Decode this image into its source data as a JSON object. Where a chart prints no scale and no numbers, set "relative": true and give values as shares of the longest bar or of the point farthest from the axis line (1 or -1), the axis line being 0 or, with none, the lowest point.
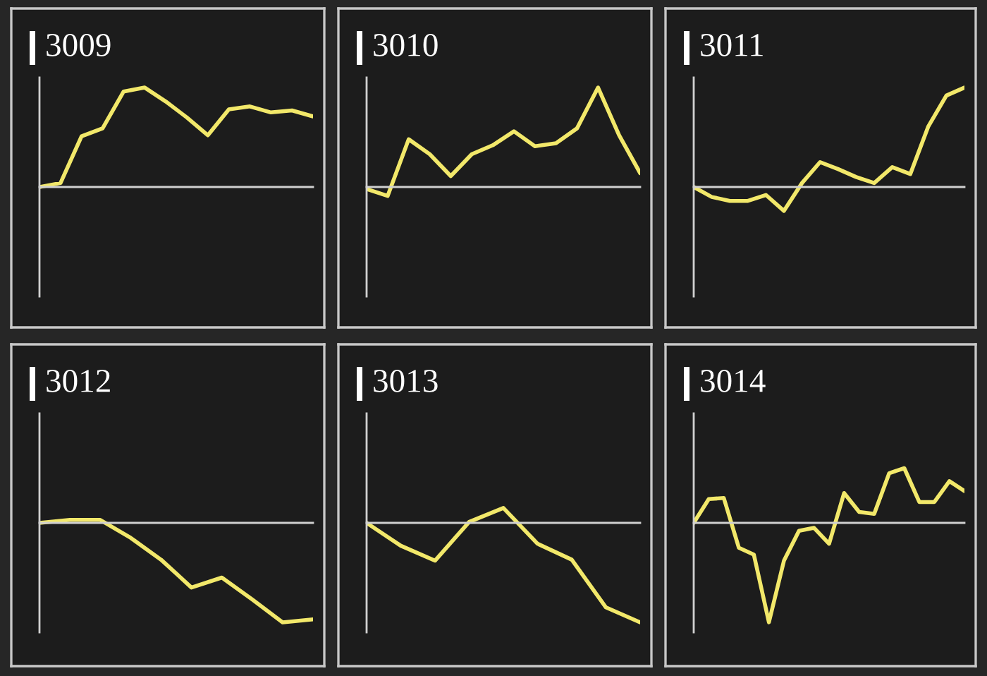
{
  "chart_data": [
    {
      "type": "line",
      "title": "3009",
      "relative": true,
      "color": "#f2e86a",
      "categories": [
        null,
        null,
        null,
        null,
        null,
        null,
        null,
        null,
        null,
        null,
        null,
        null,
        null,
        null
      ],
      "values": [
        0,
        0.04,
        0.51,
        0.59,
        0.96,
        1,
        0.86,
        0.7,
        0.52,
        0.78,
        0.81,
        0.75,
        0.77,
        0.71
      ]
    },
    {
      "type": "line",
      "title": "3010",
      "relative": true,
      "color": "#f2e86a",
      "categories": [
        null,
        null,
        null,
        null,
        null,
        null,
        null,
        null,
        null,
        null,
        null,
        null,
        null,
        null
      ],
      "values": [
        -0.02,
        -0.09,
        0.48,
        0.33,
        0.11,
        0.33,
        0.42,
        0.56,
        0.41,
        0.44,
        0.59,
        1,
        0.52,
        0.14
      ]
    },
    {
      "type": "line",
      "title": "3011",
      "relative": true,
      "color": "#f2e86a",
      "categories": [
        null,
        null,
        null,
        null,
        null,
        null,
        null,
        null,
        null,
        null,
        null,
        null,
        null,
        null,
        null,
        null
      ],
      "values": [
        0,
        -0.1,
        -0.14,
        -0.14,
        -0.08,
        -0.24,
        0.04,
        0.25,
        0.18,
        0.1,
        0.04,
        0.2,
        0.13,
        0.61,
        0.92,
        1
      ]
    },
    {
      "type": "line",
      "title": "3012",
      "relative": true,
      "color": "#f2e86a",
      "categories": [
        null,
        null,
        null,
        null,
        null,
        null,
        null,
        null,
        null,
        null
      ],
      "values": [
        0,
        0.03,
        0.03,
        -0.15,
        -0.37,
        -0.65,
        -0.55,
        -0.77,
        -1,
        -0.97
      ]
    },
    {
      "type": "line",
      "title": "3013",
      "relative": true,
      "color": "#f2e86a",
      "categories": [
        null,
        null,
        null,
        null,
        null,
        null,
        null,
        null,
        null
      ],
      "values": [
        0,
        -0.23,
        -0.38,
        0.01,
        0.15,
        -0.21,
        -0.37,
        -0.85,
        -1
      ]
    },
    {
      "type": "line",
      "title": "3014",
      "relative": true,
      "color": "#f2e86a",
      "categories": [
        null,
        null,
        null,
        null,
        null,
        null,
        null,
        null,
        null,
        null,
        null,
        null,
        null,
        null,
        null,
        null,
        null,
        null,
        null
      ],
      "values": [
        0,
        0.24,
        0.25,
        -0.25,
        -0.32,
        -1,
        -0.38,
        -0.08,
        -0.05,
        -0.21,
        0.3,
        0.11,
        0.09,
        0.5,
        0.55,
        0.21,
        0.21,
        0.42,
        0.32
      ]
    }
  ]
}
